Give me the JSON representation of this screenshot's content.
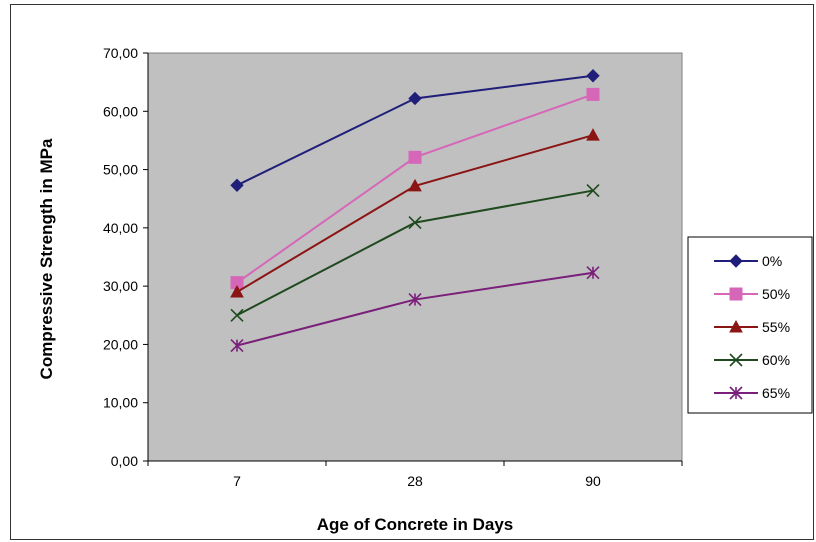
{
  "chart_data": {
    "type": "line",
    "title": "",
    "xlabel": "Age of Concrete in Days",
    "ylabel": "Compressive Strength in MPa",
    "categories": [
      "7",
      "28",
      "90"
    ],
    "ylim": [
      0,
      70
    ],
    "yticks": [
      "0,00",
      "10,00",
      "20,00",
      "30,00",
      "40,00",
      "50,00",
      "60,00",
      "70,00"
    ],
    "grid": false,
    "plot_background": "#c0c0c0",
    "legend_position": "right",
    "series": [
      {
        "name": "0%",
        "values": [
          47.3,
          62.2,
          66.1
        ],
        "color": "#1f1f7a",
        "marker": "diamond"
      },
      {
        "name": "50%",
        "values": [
          30.6,
          52.1,
          62.9
        ],
        "color": "#d666b8",
        "marker": "square"
      },
      {
        "name": "55%",
        "values": [
          29.0,
          47.2,
          55.9
        ],
        "color": "#8b1414",
        "marker": "triangle"
      },
      {
        "name": "60%",
        "values": [
          25.0,
          40.9,
          46.4
        ],
        "color": "#1f4a1f",
        "marker": "x"
      },
      {
        "name": "65%",
        "values": [
          19.8,
          27.7,
          32.3
        ],
        "color": "#7a1f7a",
        "marker": "star"
      }
    ]
  }
}
